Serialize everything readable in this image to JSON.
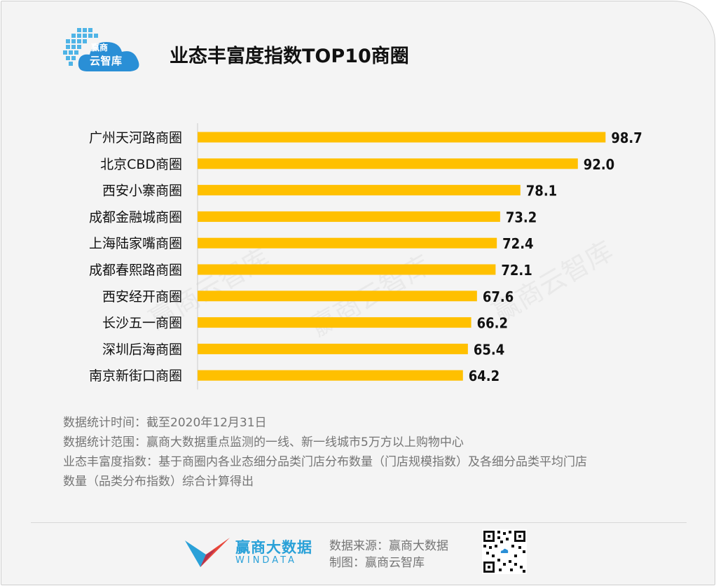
{
  "header": {
    "title": "业态丰富度指数TOP10商圈",
    "logo_line1": "赢商",
    "logo_line2": "云智库"
  },
  "watermark": "赢商云智库",
  "colors": {
    "bar": "#ffc000",
    "background": "#f4f4f4",
    "text": "#111111",
    "note": "#757575",
    "brand_blue": "#2aa1d8",
    "brand_red": "#e8463a"
  },
  "chart_data": {
    "type": "bar",
    "orientation": "horizontal",
    "categories": [
      "广州天河路商圈",
      "北京CBD商圈",
      "西安小寨商圈",
      "成都金融城商圈",
      "上海陆家嘴商圈",
      "成都春熙路商圈",
      "西安经开商圈",
      "长沙五一商圈",
      "深圳后海商圈",
      "南京新街口商圈"
    ],
    "values": [
      98.7,
      92.0,
      78.1,
      73.2,
      72.4,
      72.1,
      67.6,
      66.2,
      65.4,
      64.2
    ],
    "value_labels": [
      "98.7",
      "92.0",
      "78.1",
      "73.2",
      "72.4",
      "72.1",
      "67.6",
      "66.2",
      "65.4",
      "64.2"
    ],
    "xlim": [
      0,
      100
    ],
    "grid": false,
    "legend": "none",
    "data_labels": "end"
  },
  "notes": {
    "line1": "数据统计时间：截至2020年12月31日",
    "line2": "数据统计范围：赢商大数据重点监测的一线、新一线城市5万方以上购物中心",
    "line3": "业态丰富度指数：基于商圈内各业态细分品类门店分布数量（门店规模指数）及各细分品类平均门店",
    "line4": "数量（品类分布指数）综合计算得出"
  },
  "footer": {
    "brand_cn": "赢商大数据",
    "brand_en": "WINDATA",
    "source": "数据来源：赢商大数据",
    "made_by": "制图：赢商云智库"
  }
}
